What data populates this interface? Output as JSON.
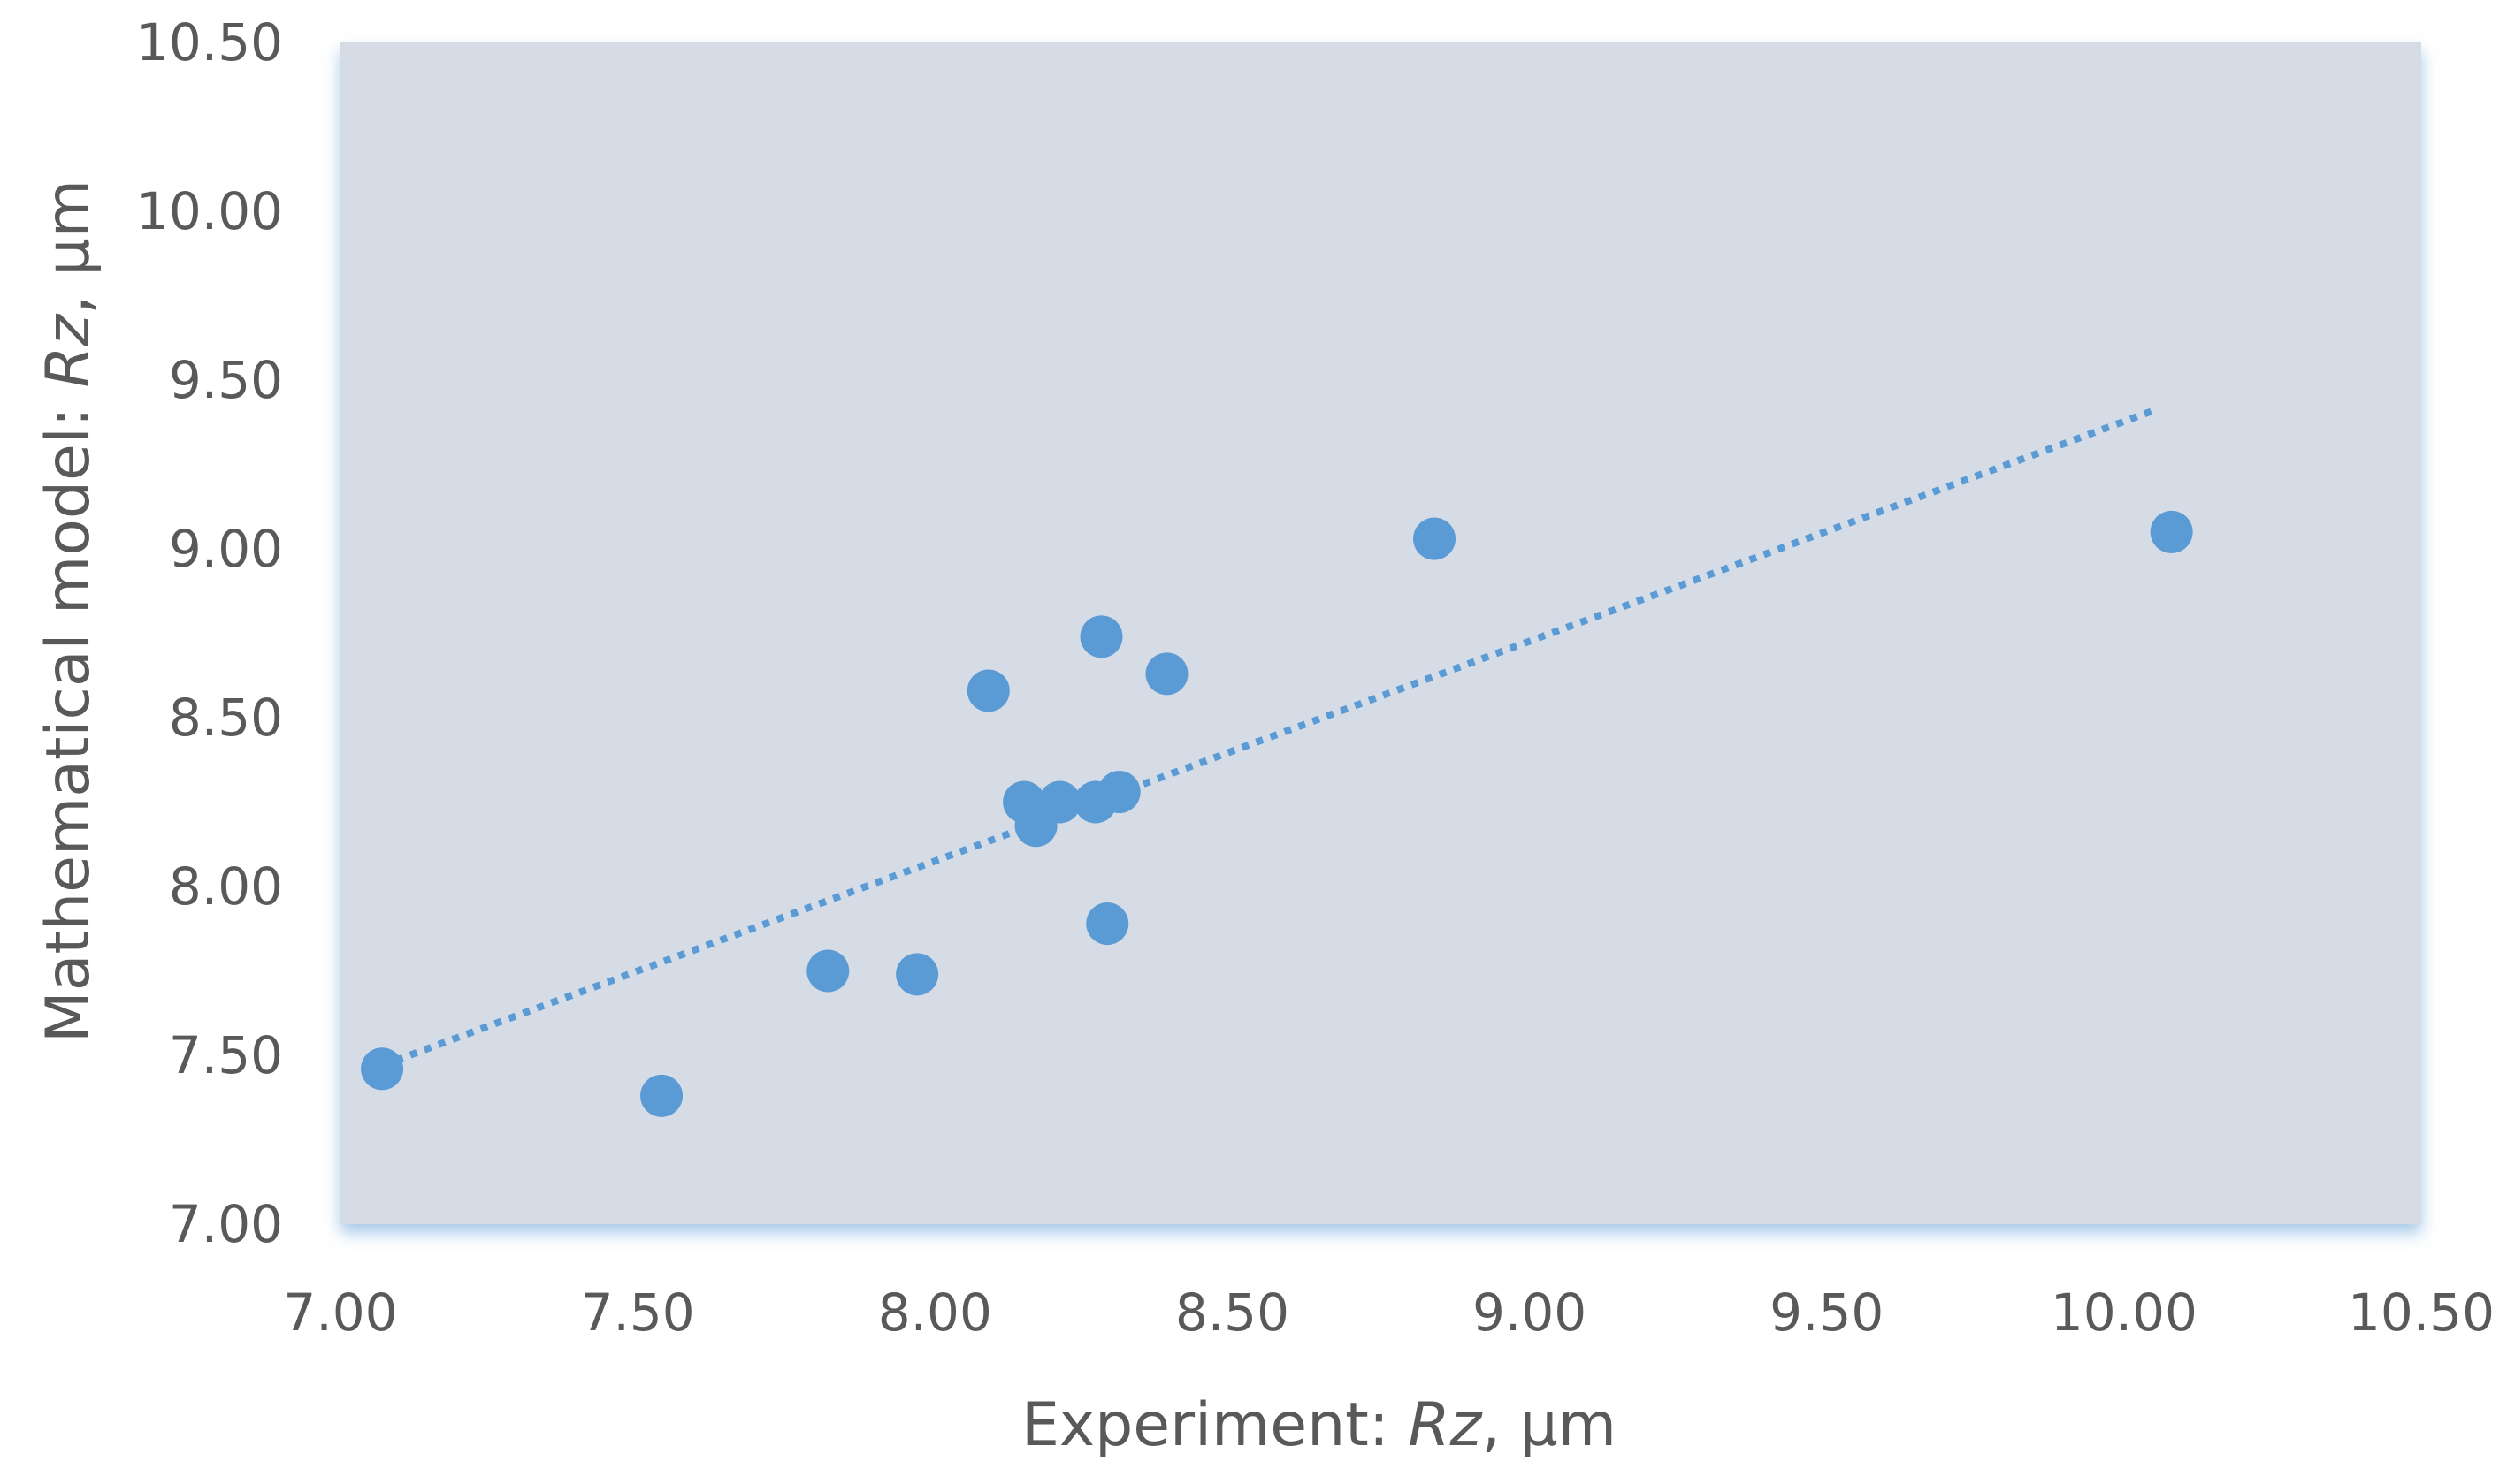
{
  "chart_data": {
    "type": "scatter",
    "title": "",
    "xlabel": {
      "prefix": "Experiment: ",
      "variable": "Rz",
      "suffix": ", µm"
    },
    "ylabel": {
      "prefix": "Mathematical model: ",
      "variable": "Rz",
      "suffix": ", µm"
    },
    "xlim": [
      7.0,
      10.5
    ],
    "ylim": [
      7.0,
      10.5
    ],
    "xticks": [
      "7.00",
      "7.50",
      "8.00",
      "8.50",
      "9.00",
      "9.50",
      "10.00",
      "10.50"
    ],
    "yticks": [
      "7.00",
      "7.50",
      "8.00",
      "8.50",
      "9.00",
      "9.50",
      "10.00",
      "10.50"
    ],
    "grid": false,
    "legend": "none",
    "series": [
      {
        "x": [
          7.07,
          7.54,
          7.82,
          7.97,
          8.09,
          8.15,
          8.17,
          8.21,
          8.27,
          8.28,
          8.29,
          8.31,
          8.39,
          8.84,
          10.08
        ],
        "y": [
          7.46,
          7.38,
          7.75,
          7.74,
          8.58,
          8.25,
          8.18,
          8.25,
          8.25,
          8.74,
          7.89,
          8.28,
          8.63,
          9.03,
          9.05
        ],
        "color": "#5b9bd5"
      }
    ],
    "trendline": {
      "type": "linear",
      "style": "dotted",
      "x_range": [
        7.07,
        10.05
      ],
      "y_range": [
        7.47,
        9.41
      ],
      "color": "#5b9bd5"
    },
    "colors": {
      "plot_background": "#d6dce5",
      "text": "#595959",
      "marker": "#5b9bd5"
    }
  }
}
